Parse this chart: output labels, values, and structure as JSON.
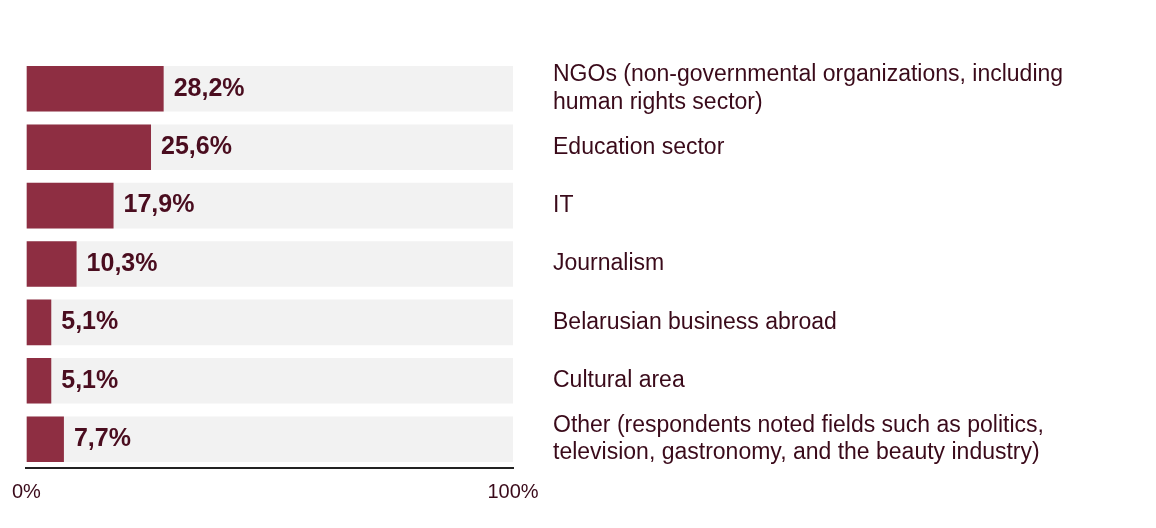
{
  "chart_data": {
    "type": "bar",
    "orientation": "horizontal",
    "categories": [
      "NGOs (non-governmental organizations, including human rights sector)",
      "Education sector",
      "IT",
      "Journalism",
      "Belarusian business abroad",
      "Cultural area",
      "Other (respondents noted fields such as politics, television, gastronomy, and the beauty industry)"
    ],
    "values": [
      28.2,
      25.6,
      17.9,
      10.3,
      5.1,
      5.1,
      7.7
    ],
    "value_labels": [
      "28,2%",
      "25,6%",
      "17,9%",
      "10,3%",
      "5,1%",
      "5,1%",
      "7,7%"
    ],
    "color": "#8e2e42",
    "xlim": [
      0,
      100
    ],
    "xticks": [
      {
        "value": 0,
        "label": "0%"
      },
      {
        "value": 100,
        "label": "100%"
      }
    ],
    "grid": false,
    "legend": false
  }
}
